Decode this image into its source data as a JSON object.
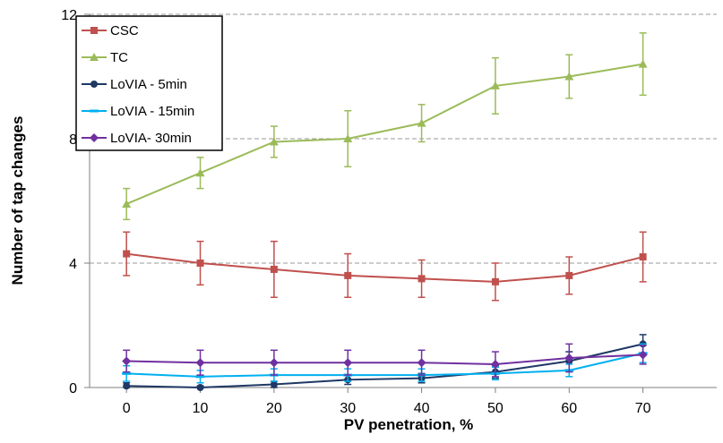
{
  "chart_data": {
    "type": "line",
    "title": "",
    "xlabel": "PV penetration, %",
    "ylabel": "Number of tap changes",
    "x": [
      0,
      10,
      20,
      30,
      40,
      50,
      60,
      70
    ],
    "xticks": [
      "0",
      "10",
      "20",
      "30",
      "40",
      "50",
      "60",
      "70"
    ],
    "yticks": [
      "0",
      "4",
      "8",
      "12"
    ],
    "ylim": [
      0,
      12
    ],
    "grid": "horizontal dashed",
    "legend_position": "top-left",
    "series": [
      {
        "name": "CSC",
        "color": "#c0504d",
        "marker": "square",
        "values": [
          4.3,
          4.0,
          3.8,
          3.6,
          3.5,
          3.4,
          3.6,
          4.2
        ],
        "error": [
          0.7,
          0.7,
          0.9,
          0.7,
          0.6,
          0.6,
          0.6,
          0.8
        ]
      },
      {
        "name": "TC",
        "color": "#9bbb59",
        "marker": "triangle",
        "values": [
          5.9,
          6.9,
          7.9,
          8.0,
          8.5,
          9.7,
          10.0,
          10.4
        ],
        "error": [
          0.5,
          0.5,
          0.5,
          0.9,
          0.6,
          0.9,
          0.7,
          1.0
        ]
      },
      {
        "name": "LoVIA - 5min",
        "color": "#1f3864",
        "marker": "circle",
        "values": [
          0.05,
          0.0,
          0.1,
          0.25,
          0.3,
          0.5,
          0.85,
          1.4
        ],
        "error": [
          0.1,
          0.05,
          0.1,
          0.15,
          0.15,
          0.2,
          0.3,
          0.3
        ]
      },
      {
        "name": "LoVIA - 15min",
        "color": "#00b0f0",
        "marker": "dash",
        "values": [
          0.45,
          0.35,
          0.4,
          0.4,
          0.4,
          0.45,
          0.55,
          1.1
        ],
        "error": [
          0.25,
          0.2,
          0.2,
          0.2,
          0.2,
          0.2,
          0.2,
          0.3
        ]
      },
      {
        "name": "LoVIA- 30min",
        "color": "#7030a0",
        "marker": "diamond",
        "values": [
          0.85,
          0.8,
          0.8,
          0.8,
          0.8,
          0.75,
          0.95,
          1.05
        ],
        "error": [
          0.35,
          0.4,
          0.4,
          0.4,
          0.4,
          0.4,
          0.45,
          0.3
        ]
      }
    ]
  }
}
